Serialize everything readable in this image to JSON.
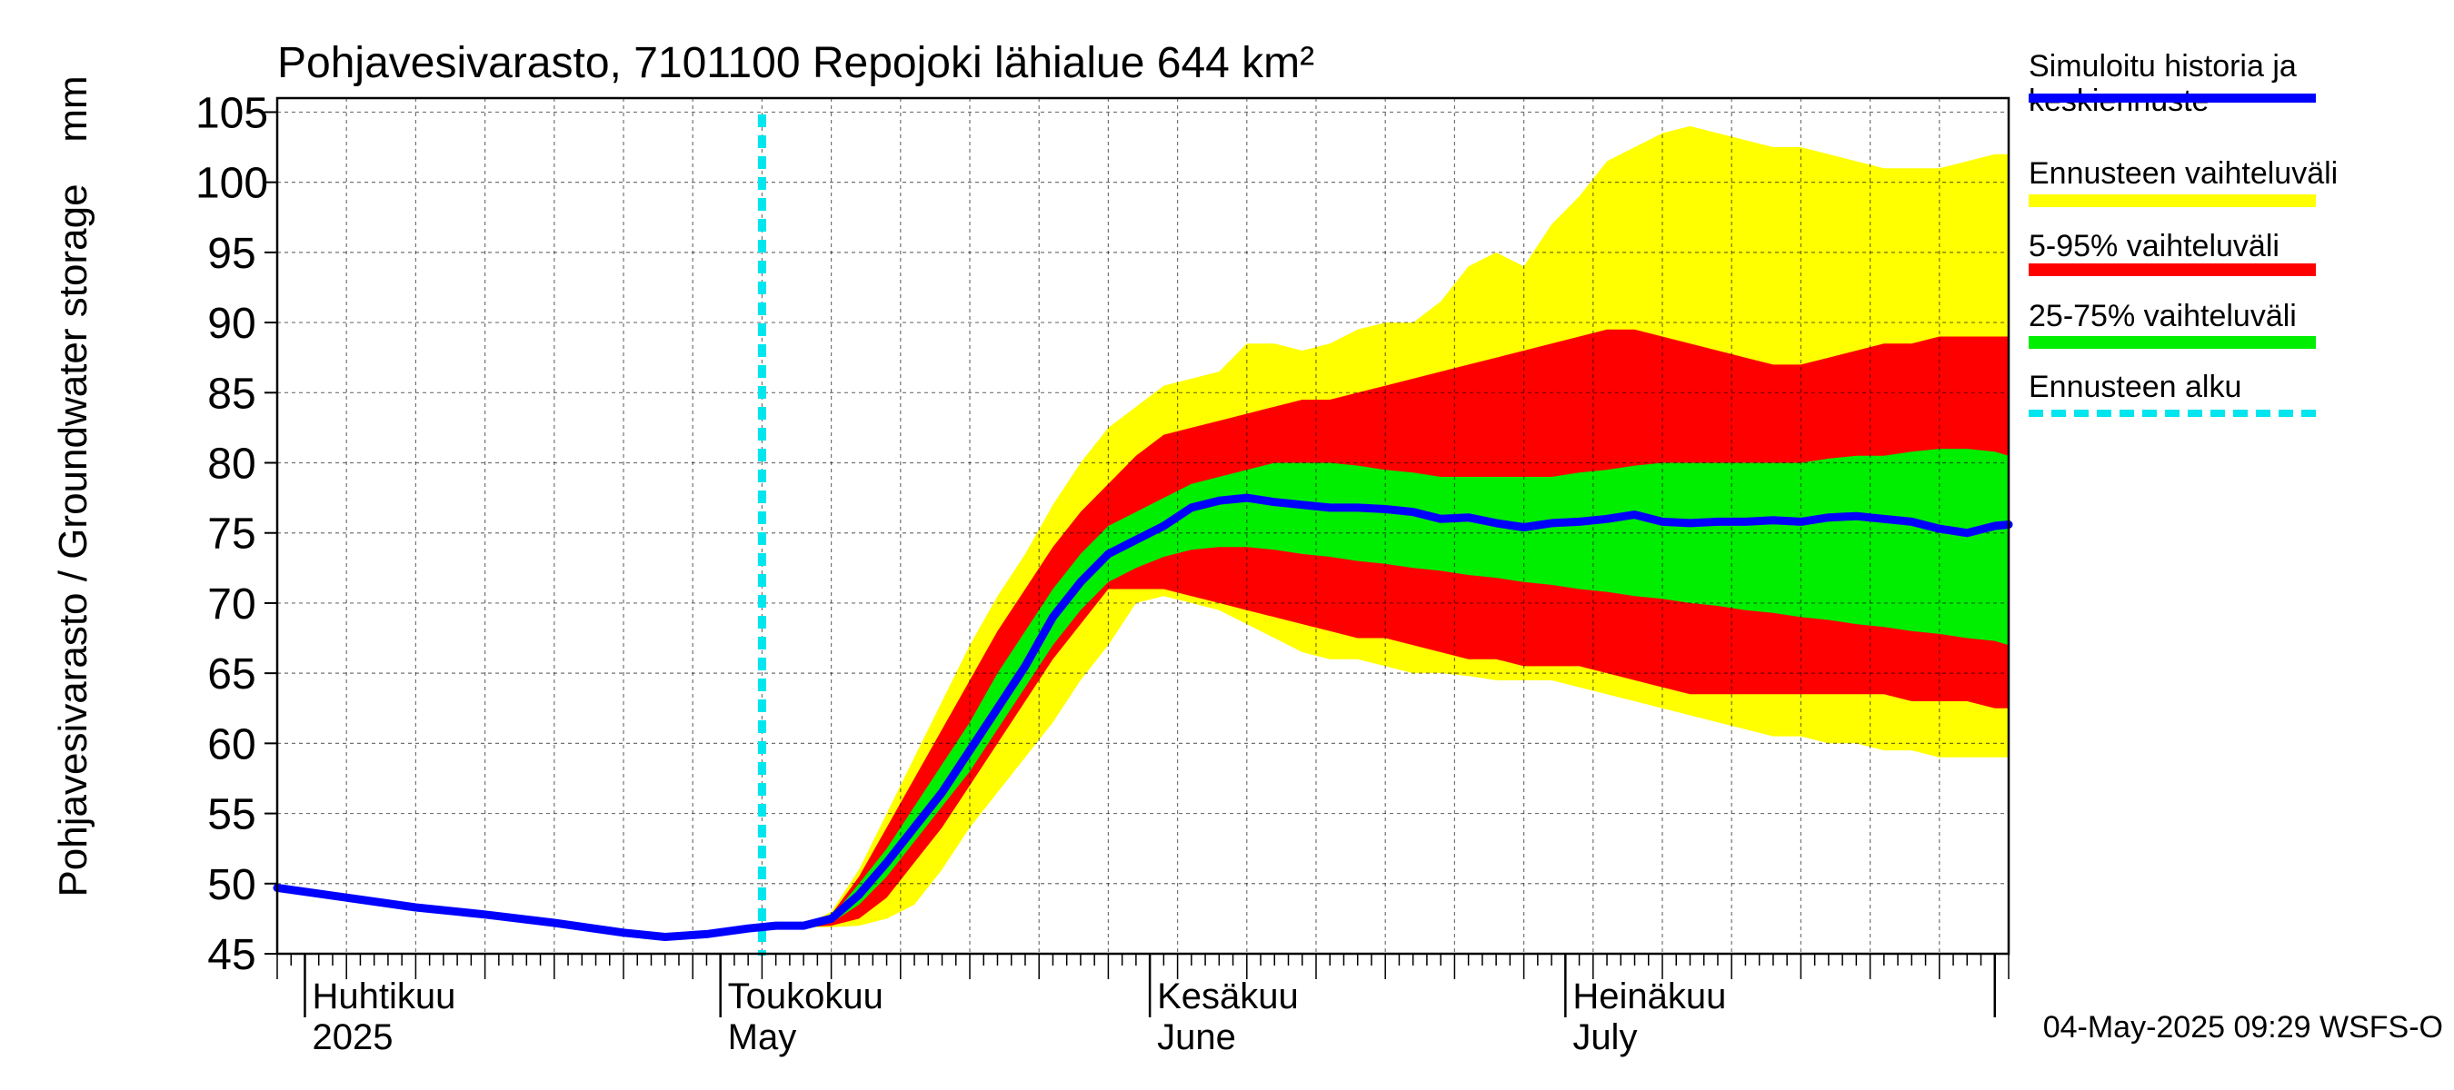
{
  "chart_data": {
    "type": "area",
    "title": "Pohjavesivarasto, 7101100 Repojoki lähialue 644 km²",
    "ylabel": "Pohjavesivarasto / Groundwater storage",
    "yunit": "mm",
    "ylim": [
      45,
      106
    ],
    "yticks": [
      45,
      50,
      55,
      60,
      65,
      70,
      75,
      80,
      85,
      90,
      95,
      100,
      105
    ],
    "xlim_days": [
      0,
      125
    ],
    "x_note": "days since 2025-03-30",
    "month_labels": [
      {
        "day": 2,
        "fi": "Huhtikuu",
        "en": "2025"
      },
      {
        "day": 32,
        "fi": "Toukokuu",
        "en": "May"
      },
      {
        "day": 63,
        "fi": "Kesäkuu",
        "en": "June"
      },
      {
        "day": 93,
        "fi": "Heinäkuu",
        "en": "July"
      }
    ],
    "month_boundaries": [
      2,
      32,
      63,
      93,
      124
    ],
    "forecast_start_day": 35,
    "x": [
      0,
      5,
      10,
      15,
      20,
      25,
      28,
      31,
      34,
      36,
      38,
      40,
      42,
      44,
      46,
      48,
      50,
      52,
      54,
      56,
      58,
      60,
      62,
      64,
      66,
      68,
      70,
      72,
      74,
      76,
      78,
      80,
      82,
      84,
      86,
      88,
      90,
      92,
      94,
      96,
      98,
      100,
      102,
      104,
      106,
      108,
      110,
      112,
      114,
      116,
      118,
      120,
      122,
      124,
      125
    ],
    "series": [
      {
        "name": "Simuloitu historia ja keskiennuste",
        "role": "median",
        "color": "#0000ff",
        "values": [
          49.7,
          49.0,
          48.3,
          47.8,
          47.2,
          46.5,
          46.2,
          46.4,
          46.8,
          47.0,
          47.0,
          47.5,
          49.2,
          51.5,
          54.0,
          56.5,
          59.5,
          62.5,
          65.5,
          69.0,
          71.5,
          73.5,
          74.5,
          75.5,
          76.8,
          77.3,
          77.5,
          77.2,
          77.0,
          76.8,
          76.8,
          76.7,
          76.5,
          76.0,
          76.1,
          75.7,
          75.4,
          75.7,
          75.8,
          76.0,
          76.3,
          75.8,
          75.7,
          75.8,
          75.8,
          75.9,
          75.8,
          76.1,
          76.2,
          76.0,
          75.8,
          75.3,
          75.0,
          75.5,
          75.6
        ]
      },
      {
        "name": "Ennusteen vaihteluväli",
        "role": "band-outer",
        "color": "#ffff00",
        "upper": [
          null,
          null,
          null,
          null,
          null,
          null,
          null,
          null,
          46.8,
          47.0,
          47.0,
          48.0,
          51.0,
          55.0,
          59.0,
          63.0,
          67.0,
          70.5,
          73.5,
          77.0,
          80.0,
          82.5,
          84.0,
          85.5,
          86.0,
          86.5,
          88.5,
          88.5,
          88.0,
          88.5,
          89.5,
          90.0,
          90.0,
          91.5,
          94.0,
          95.0,
          94.0,
          97.0,
          99.0,
          101.5,
          102.5,
          103.5,
          104.0,
          103.5,
          103.0,
          102.5,
          102.5,
          102.0,
          101.5,
          101.0,
          101.0,
          101.0,
          101.5,
          102.0,
          102.0
        ],
        "lower": [
          null,
          null,
          null,
          null,
          null,
          null,
          null,
          null,
          46.8,
          46.9,
          46.9,
          46.9,
          47.0,
          47.5,
          48.5,
          51.0,
          54.0,
          56.5,
          59.0,
          61.5,
          64.5,
          67.0,
          70.0,
          70.5,
          70.0,
          69.5,
          68.5,
          67.5,
          66.5,
          66.0,
          66.0,
          65.5,
          65.0,
          65.0,
          64.8,
          64.5,
          64.5,
          64.5,
          64.0,
          63.5,
          63.0,
          62.5,
          62.0,
          61.5,
          61.0,
          60.5,
          60.5,
          60.0,
          60.0,
          59.5,
          59.5,
          59.0,
          59.0,
          59.0,
          59.0
        ]
      },
      {
        "name": "5-95% vaihteluväli",
        "role": "band-p5-95",
        "color": "#ff0000",
        "upper": [
          null,
          null,
          null,
          null,
          null,
          null,
          null,
          null,
          46.8,
          47.0,
          47.0,
          47.8,
          50.5,
          54.0,
          57.5,
          61.0,
          64.5,
          68.0,
          71.0,
          74.0,
          76.5,
          78.5,
          80.5,
          82.0,
          82.5,
          83.0,
          83.5,
          84.0,
          84.5,
          84.5,
          85.0,
          85.5,
          86.0,
          86.5,
          87.0,
          87.5,
          88.0,
          88.5,
          89.0,
          89.5,
          89.5,
          89.0,
          88.5,
          88.0,
          87.5,
          87.0,
          87.0,
          87.5,
          88.0,
          88.5,
          88.5,
          89.0,
          89.0,
          89.0,
          89.0
        ],
        "lower": [
          null,
          null,
          null,
          null,
          null,
          null,
          null,
          null,
          46.8,
          46.9,
          46.9,
          47.0,
          47.5,
          49.0,
          51.5,
          54.0,
          57.0,
          60.0,
          63.0,
          66.0,
          68.5,
          71.0,
          71.0,
          71.0,
          70.5,
          70.0,
          69.5,
          69.0,
          68.5,
          68.0,
          67.5,
          67.5,
          67.0,
          66.5,
          66.0,
          66.0,
          65.5,
          65.5,
          65.5,
          65.0,
          64.5,
          64.0,
          63.5,
          63.5,
          63.5,
          63.5,
          63.5,
          63.5,
          63.5,
          63.5,
          63.0,
          63.0,
          63.0,
          62.5,
          62.5
        ]
      },
      {
        "name": "25-75% vaihteluväli",
        "role": "band-p25-75",
        "color": "#00ee00",
        "upper": [
          null,
          null,
          null,
          null,
          null,
          null,
          null,
          null,
          46.8,
          47.0,
          47.0,
          47.6,
          50.0,
          52.5,
          55.5,
          58.5,
          61.5,
          65.0,
          68.0,
          71.0,
          73.5,
          75.5,
          76.5,
          77.5,
          78.5,
          79.0,
          79.5,
          80.0,
          80.0,
          80.0,
          79.8,
          79.5,
          79.3,
          79.0,
          79.0,
          79.0,
          79.0,
          79.0,
          79.3,
          79.5,
          79.8,
          80.0,
          80.0,
          80.0,
          80.0,
          80.0,
          80.0,
          80.3,
          80.5,
          80.5,
          80.8,
          81.0,
          81.0,
          80.8,
          80.5
        ],
        "lower": [
          null,
          null,
          null,
          null,
          null,
          null,
          null,
          null,
          46.8,
          46.9,
          46.9,
          47.2,
          48.5,
          50.5,
          53.0,
          55.5,
          58.0,
          61.0,
          64.0,
          67.0,
          69.5,
          71.5,
          72.5,
          73.3,
          73.8,
          74.0,
          74.0,
          73.8,
          73.5,
          73.3,
          73.0,
          72.8,
          72.5,
          72.3,
          72.0,
          71.8,
          71.5,
          71.3,
          71.0,
          70.8,
          70.5,
          70.3,
          70.0,
          69.8,
          69.5,
          69.3,
          69.0,
          68.8,
          68.5,
          68.3,
          68.0,
          67.8,
          67.5,
          67.3,
          67.0
        ]
      }
    ],
    "legend": [
      {
        "label": "Simuloitu historia ja keskiennuste",
        "color": "#0000ff",
        "style": "solid"
      },
      {
        "label": "Ennusteen vaihteluväli",
        "color": "#ffff00",
        "style": "solid"
      },
      {
        "label": "5-95% vaihteluväli",
        "color": "#ff0000",
        "style": "solid"
      },
      {
        "label": "25-75% vaihteluväli",
        "color": "#00ee00",
        "style": "solid"
      },
      {
        "label": "Ennusteen alku",
        "color": "#00e5ee",
        "style": "dotted"
      }
    ],
    "legend_position": "right",
    "grid": true,
    "footer": "04-May-2025 09:29 WSFS-O"
  }
}
